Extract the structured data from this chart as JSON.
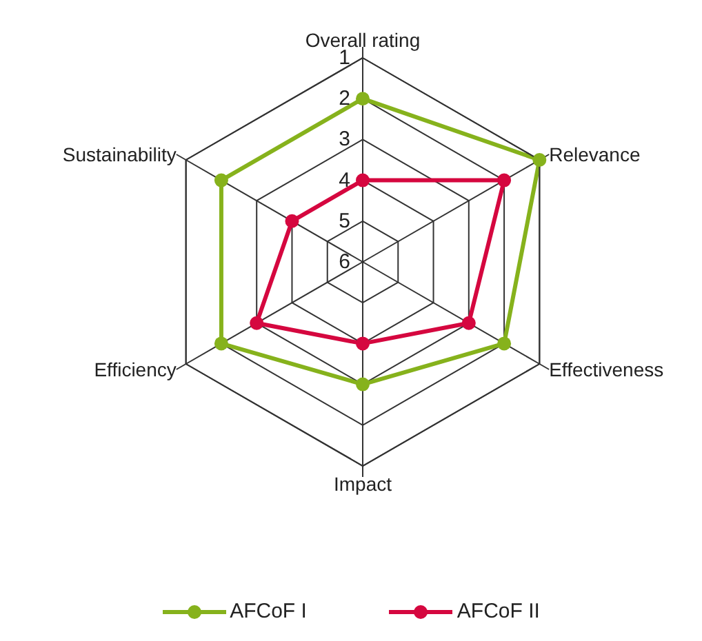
{
  "chart_data": {
    "type": "radar",
    "categories": [
      "Overall rating",
      "Relevance",
      "Effectiveness",
      "Impact",
      "Efficiency",
      "Sustainability"
    ],
    "ylim": [
      6,
      1
    ],
    "yticks": [
      1,
      2,
      3,
      4,
      5,
      6
    ],
    "grid": true,
    "legend": "bottom",
    "marker": "circle",
    "series": [
      {
        "name": "AFCoF I",
        "color": "#86b21c",
        "values": [
          2,
          1,
          2,
          3,
          2,
          2
        ]
      },
      {
        "name": "AFCoF II",
        "color": "#d5073f",
        "values": [
          4,
          2,
          3,
          4,
          3,
          4
        ]
      }
    ]
  }
}
